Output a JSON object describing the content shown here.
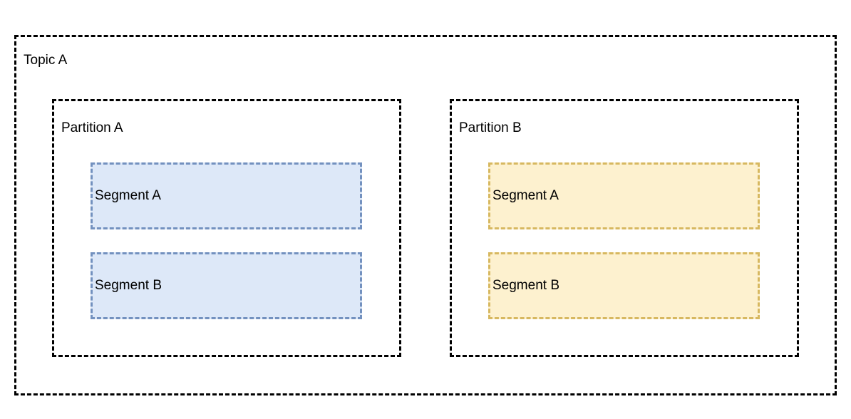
{
  "colors": {
    "outline": "#000000",
    "blue_fill": "#dde8f8",
    "blue_stroke": "#7391bf",
    "yellow_fill": "#fdf1cf",
    "yellow_stroke": "#d7b860"
  },
  "topic": {
    "label": "Topic A",
    "partitions": [
      {
        "label": "Partition A",
        "segments": [
          {
            "label": "Segment A"
          },
          {
            "label": "Segment B"
          }
        ]
      },
      {
        "label": "Partition B",
        "segments": [
          {
            "label": "Segment A"
          },
          {
            "label": "Segment B"
          }
        ]
      }
    ]
  }
}
